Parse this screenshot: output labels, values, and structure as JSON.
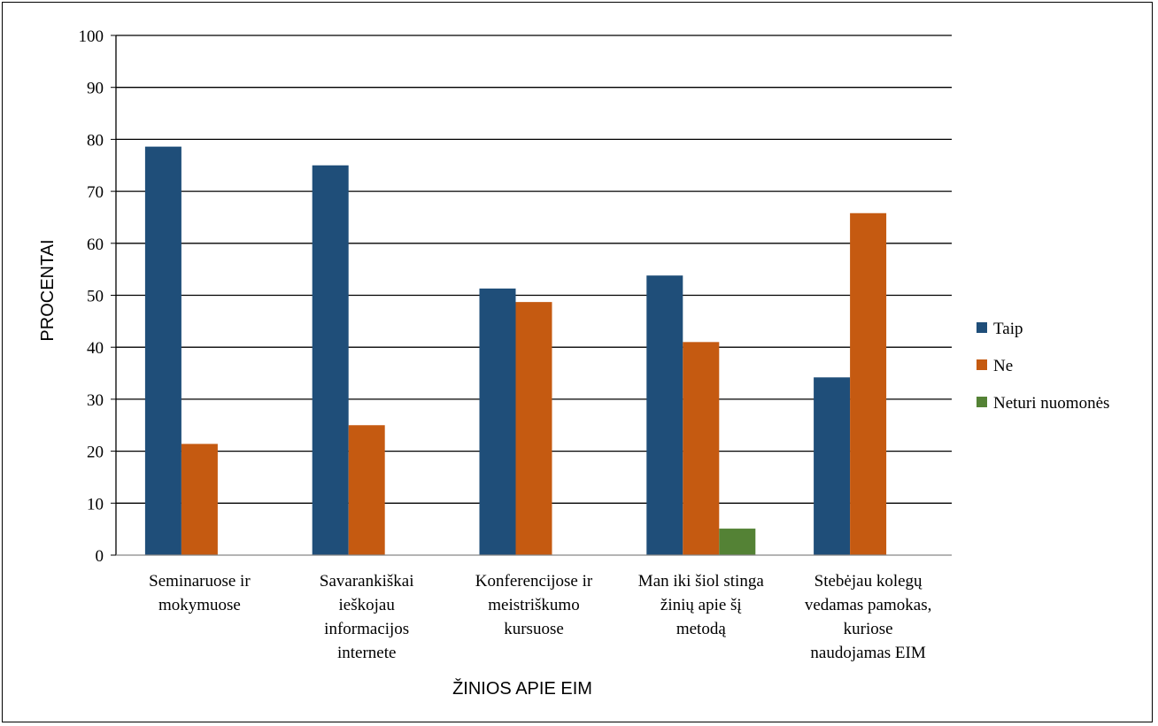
{
  "chart_data": {
    "type": "bar",
    "title": "",
    "xlabel": "ŽINIOS APIE EIM",
    "ylabel": "PROCENTAI",
    "ylim": [
      0,
      100
    ],
    "yticks": [
      "0",
      "10",
      "20",
      "30",
      "40",
      "50",
      "60",
      "70",
      "80",
      "90",
      "100"
    ],
    "grid": true,
    "legend_position": "right",
    "categories": [
      [
        "Seminaruose ir",
        "mokymuose"
      ],
      [
        "Savarankiškai",
        "ieškojau",
        "informacijos",
        "internete"
      ],
      [
        "Konferencijose ir",
        "meistriškumo",
        "kursuose"
      ],
      [
        "Man iki šiol stinga",
        "žinių apie šį",
        "metodą"
      ],
      [
        "Stebėjau kolegų",
        "vedamas pamokas,",
        "kuriose",
        "naudojamas EIM"
      ]
    ],
    "series": [
      {
        "name": "Taip",
        "color": "#1f4e79",
        "values": [
          78.6,
          75.0,
          51.3,
          53.8,
          34.2
        ]
      },
      {
        "name": "Ne",
        "color": "#c55a11",
        "values": [
          21.4,
          25.0,
          48.7,
          41.0,
          65.8
        ]
      },
      {
        "name": "Neturi nuomonės",
        "color": "#548235",
        "values": [
          0,
          0,
          0,
          5.1,
          0
        ]
      }
    ]
  }
}
